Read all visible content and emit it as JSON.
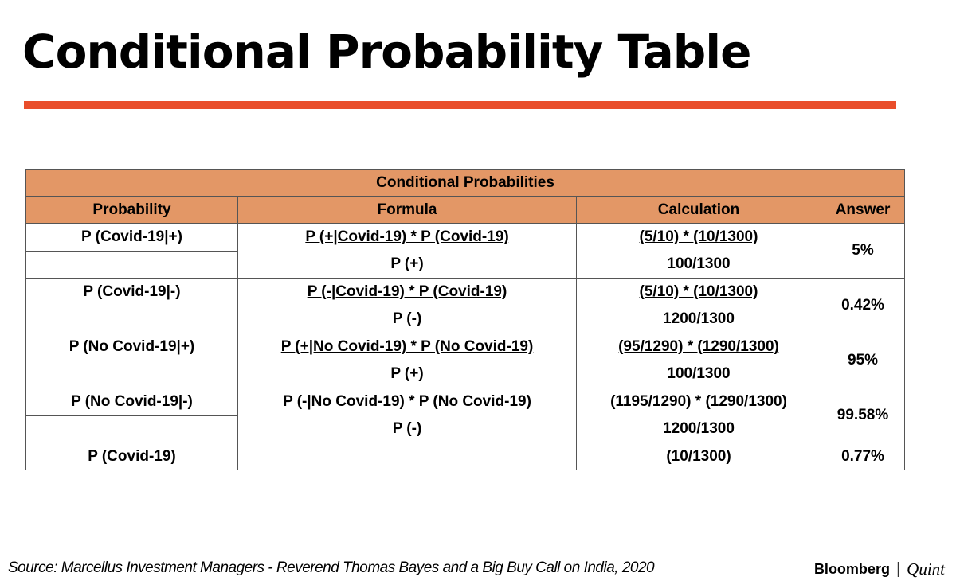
{
  "title": "Conditional Probability Table",
  "accent_color": "#e94e2b",
  "header_fill_color": "#e39766",
  "table": {
    "caption": "Conditional Probabilities",
    "columns": [
      "Probability",
      "Formula",
      "Calculation",
      "Answer"
    ],
    "rows": [
      {
        "probability": "P (Covid-19|+)",
        "formula_numerator": "P (+|Covid-19) * P (Covid-19)",
        "formula_denominator": "P (+)",
        "calc_numerator": "(5/10) * (10/1300)",
        "calc_denominator": "100/1300",
        "answer": "5%"
      },
      {
        "probability": "P (Covid-19|-)",
        "formula_numerator": "P (-|Covid-19) * P (Covid-19)",
        "formula_denominator": "P (-)",
        "calc_numerator": "(5/10) * (10/1300)",
        "calc_denominator": "1200/1300",
        "answer": "0.42%"
      },
      {
        "probability": "P (No Covid-19|+)",
        "formula_numerator": "P (+|No Covid-19) * P (No Covid-19)",
        "formula_denominator": "P (+)",
        "calc_numerator": "(95/1290) * (1290/1300)",
        "calc_denominator": "100/1300",
        "answer": "95%"
      },
      {
        "probability": "P (No Covid-19|-)",
        "formula_numerator": "P (-|No Covid-19) * P (No Covid-19)",
        "formula_denominator": "P (-)",
        "calc_numerator": "(1195/1290) * (1290/1300)",
        "calc_denominator": "1200/1300",
        "answer": "99.58%"
      }
    ],
    "last_row": {
      "probability": "P (Covid-19)",
      "formula": "",
      "calculation": "(10/1300)",
      "answer": "0.77%"
    }
  },
  "source": "Source: Marcellus Investment Managers - Reverend Thomas Bayes and a Big Buy Call on India, 2020",
  "brand": {
    "name_1": "Bloomberg",
    "separator": "|",
    "name_2": "Quint"
  }
}
